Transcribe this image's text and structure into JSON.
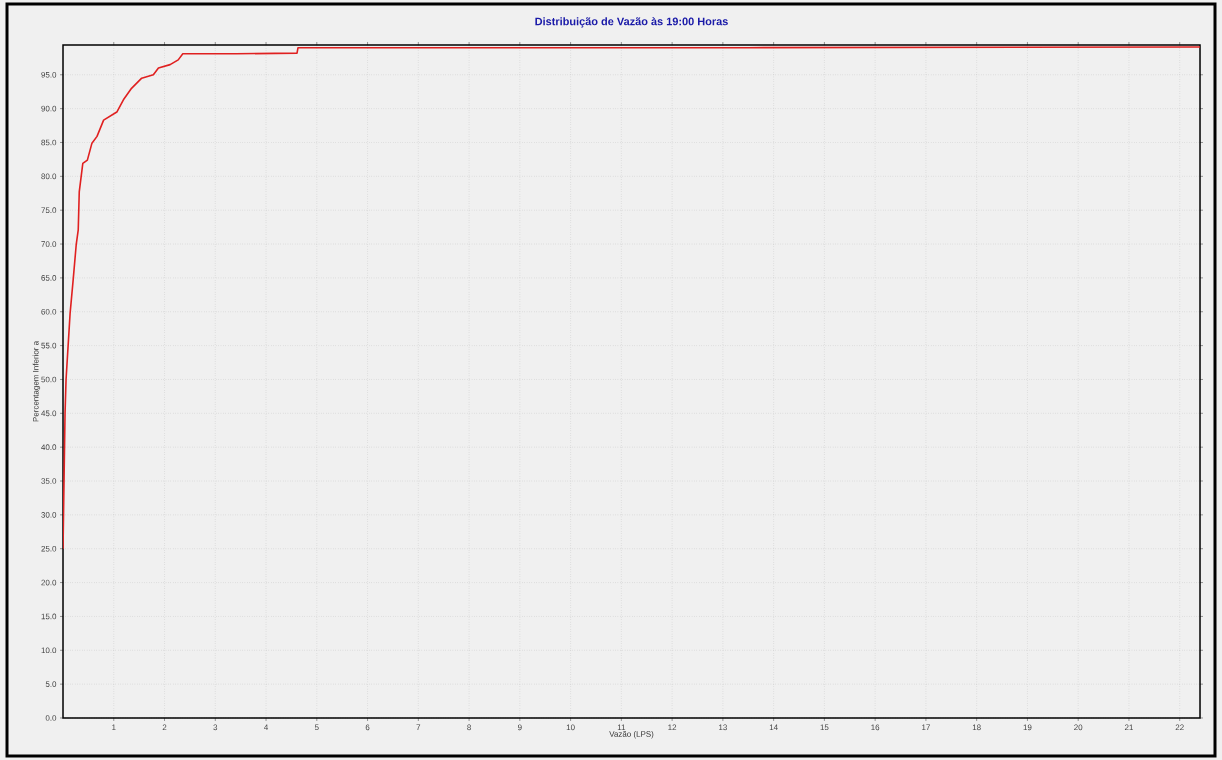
{
  "chart_data": {
    "type": "line",
    "title": "Distribuição de Vazão às 19:00 Horas",
    "xlabel": "Vazão (LPS)",
    "ylabel": "Percentagem Inferior a",
    "xlim": [
      0,
      22.4
    ],
    "ylim": [
      0,
      99.4
    ],
    "xticks": [
      1,
      2,
      3,
      4,
      5,
      6,
      7,
      8,
      9,
      10,
      11,
      12,
      13,
      14,
      15,
      16,
      17,
      18,
      19,
      20,
      21,
      22
    ],
    "yticks": [
      {
        "value": 0,
        "label": "0.0"
      },
      {
        "value": 5,
        "label": "5.0"
      },
      {
        "value": 10,
        "label": "10.0"
      },
      {
        "value": 15,
        "label": "15.0"
      },
      {
        "value": 20,
        "label": "20.0"
      },
      {
        "value": 25,
        "label": "25.0"
      },
      {
        "value": 30,
        "label": "30.0"
      },
      {
        "value": 35,
        "label": "35.0"
      },
      {
        "value": 40,
        "label": "40.0"
      },
      {
        "value": 45,
        "label": "45.0"
      },
      {
        "value": 50,
        "label": "50.0"
      },
      {
        "value": 55,
        "label": "55.0"
      },
      {
        "value": 60,
        "label": "60.0"
      },
      {
        "value": 65,
        "label": "65.0"
      },
      {
        "value": 70,
        "label": "70.0"
      },
      {
        "value": 75,
        "label": "75.0"
      },
      {
        "value": 80,
        "label": "80.0"
      },
      {
        "value": 85,
        "label": "85.0"
      },
      {
        "value": 90,
        "label": "90.0"
      },
      {
        "value": 95,
        "label": "95.0"
      }
    ],
    "grid": true,
    "marker": "none",
    "line_style": "solid",
    "x": [
      0,
      0.02,
      0.04,
      0.06,
      0.14,
      0.2,
      0.26,
      0.3,
      0.32,
      0.39,
      0.48,
      0.57,
      0.67,
      0.8,
      0.93,
      1.06,
      1.19,
      1.35,
      1.55,
      1.78,
      1.88,
      2.11,
      2.27,
      2.36,
      3.41,
      4.61,
      4.63,
      13.5,
      22.4
    ],
    "series": [
      {
        "color": "#e02020",
        "values": [
          25,
          35,
          45,
          50,
          59.8,
          64.7,
          69.9,
          72.1,
          77.7,
          81.9,
          82.4,
          84.9,
          85.9,
          88.3,
          88.9,
          89.5,
          91.3,
          93,
          94.5,
          95,
          96,
          96.5,
          97.2,
          98.1,
          98.1,
          98.2,
          99,
          99,
          99.1
        ]
      }
    ]
  }
}
